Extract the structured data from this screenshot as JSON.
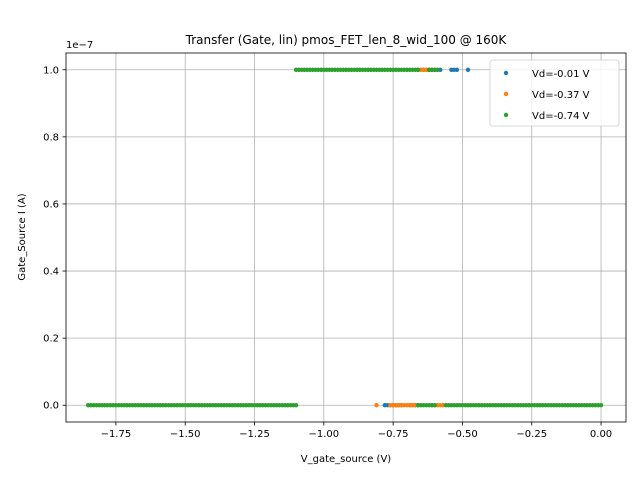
{
  "chart_data": {
    "type": "scatter",
    "title": "Transfer (Gate, lin) pmos_FET_len_8_wid_100 @ 160K",
    "xlabel": "V_gate_source (V)",
    "ylabel": "Gate_Source I (A)",
    "y_offset_text": "1e−7",
    "y_scale": 1e-07,
    "xlim": [
      -1.93,
      0.09
    ],
    "ylim": [
      -5e-09,
      1.05e-07
    ],
    "x_ticks": [
      -1.75,
      -1.5,
      -1.25,
      -1.0,
      -0.75,
      -0.5,
      -0.25,
      0.0
    ],
    "x_tick_labels": [
      "−1.75",
      "−1.50",
      "−1.25",
      "−1.00",
      "−0.75",
      "−0.50",
      "−0.25",
      "0.00"
    ],
    "y_ticks": [
      0.0,
      2e-08,
      4e-08,
      6e-08,
      8e-08,
      1e-07
    ],
    "y_tick_labels": [
      "0.0",
      "0.2",
      "0.4",
      "0.6",
      "0.8",
      "1.0"
    ],
    "grid": true,
    "legend_position": "top-right",
    "series": [
      {
        "name": "Vd=-0.01 V",
        "color": "#1f77b4",
        "segments": [
          {
            "x_start": -0.78,
            "x_end": -0.72,
            "y": 0
          },
          {
            "x_start": -0.69,
            "x_end": -0.66,
            "y": 0
          },
          {
            "x_start": -0.64,
            "x_end": -0.58,
            "y": 1e-07
          },
          {
            "x_start": -0.54,
            "x_end": -0.52,
            "y": 1e-07
          },
          {
            "x_start": -0.48,
            "x_end": -0.48,
            "y": 1e-07
          }
        ]
      },
      {
        "name": "Vd=-0.37 V",
        "color": "#ff7f0e",
        "segments": [
          {
            "x_start": -0.81,
            "x_end": -0.81,
            "y": 0
          },
          {
            "x_start": -0.76,
            "x_end": -0.67,
            "y": 0
          },
          {
            "x_start": -0.61,
            "x_end": -0.57,
            "y": 0
          },
          {
            "x_start": -0.66,
            "x_end": -0.61,
            "y": 1e-07
          }
        ]
      },
      {
        "name": "Vd=-0.74 V",
        "color": "#2ca02c",
        "segments": [
          {
            "x_start": -1.85,
            "x_end": -1.1,
            "y": 0
          },
          {
            "x_start": -0.66,
            "x_end": -0.6,
            "y": 0
          },
          {
            "x_start": -0.56,
            "x_end": 0.0,
            "y": 0
          },
          {
            "x_start": -1.1,
            "x_end": -0.66,
            "y": 1e-07
          },
          {
            "x_start": -0.62,
            "x_end": -0.59,
            "y": 1e-07
          }
        ]
      }
    ]
  }
}
